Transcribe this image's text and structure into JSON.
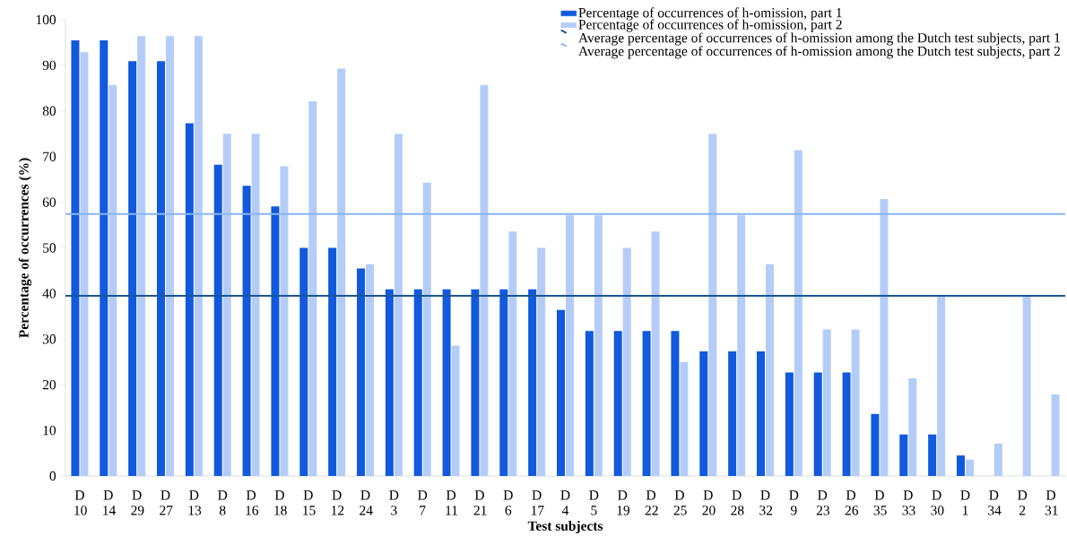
{
  "chart_data": {
    "type": "bar",
    "xlabel": "Test subjects",
    "ylabel": "Percentage of occurrences (%)",
    "categories": [
      "D 10",
      "D 14",
      "D 29",
      "D 27",
      "D 13",
      "D 8",
      "D 16",
      "D 18",
      "D 15",
      "D 12",
      "D 24",
      "D 3",
      "D 7",
      "D 11",
      "D 21",
      "D 6",
      "D 17",
      "D 4",
      "D 5",
      "D 19",
      "D 22",
      "D 25",
      "D 20",
      "D 28",
      "D 32",
      "D 9",
      "D 23",
      "D 26",
      "D 35",
      "D 33",
      "D 30",
      "D 1",
      "D 34",
      "D 2",
      "D 31"
    ],
    "series": [
      {
        "name": "Percentage of occurrences of h-omission, part 1",
        "color": "#1159dd",
        "values": [
          95.5,
          95.5,
          90.9,
          90.9,
          77.3,
          68.2,
          63.6,
          59.1,
          50,
          50,
          45.5,
          40.9,
          40.9,
          40.9,
          40.9,
          40.9,
          40.9,
          36.4,
          31.8,
          31.8,
          31.8,
          31.8,
          27.3,
          27.3,
          27.3,
          22.7,
          22.7,
          22.7,
          13.6,
          9.1,
          9.1,
          4.5,
          0,
          0,
          0
        ]
      },
      {
        "name": "Percentage of occurrences of h-omission, part 2",
        "color": "#b4cdf8",
        "values": [
          92.9,
          85.7,
          96.4,
          96.4,
          96.4,
          75,
          75,
          67.9,
          82.1,
          89.3,
          46.4,
          75,
          64.3,
          28.6,
          85.7,
          53.6,
          50,
          57.1,
          57.1,
          50,
          53.6,
          25,
          75,
          57.1,
          46.4,
          71.4,
          32.1,
          32.1,
          60.7,
          21.4,
          39.3,
          3.6,
          7.1,
          39.3,
          17.9
        ]
      }
    ],
    "ref_lines": [
      {
        "axis": "y",
        "value": 39.5,
        "label": "Average percentage of occurrences of h-omission among the Dutch test subjects, part 1",
        "color": "#1a5496"
      },
      {
        "axis": "y",
        "value": 57.4,
        "label": "Average percentage of occurrences of h-omission among the Dutch test subjects, part 2",
        "color": "#8ab4f0"
      }
    ],
    "ylim": [
      0,
      100
    ],
    "yticks": [
      0,
      10,
      20,
      30,
      40,
      50,
      60,
      70,
      80,
      90,
      100
    ],
    "legend": "top right",
    "grid": false
  }
}
